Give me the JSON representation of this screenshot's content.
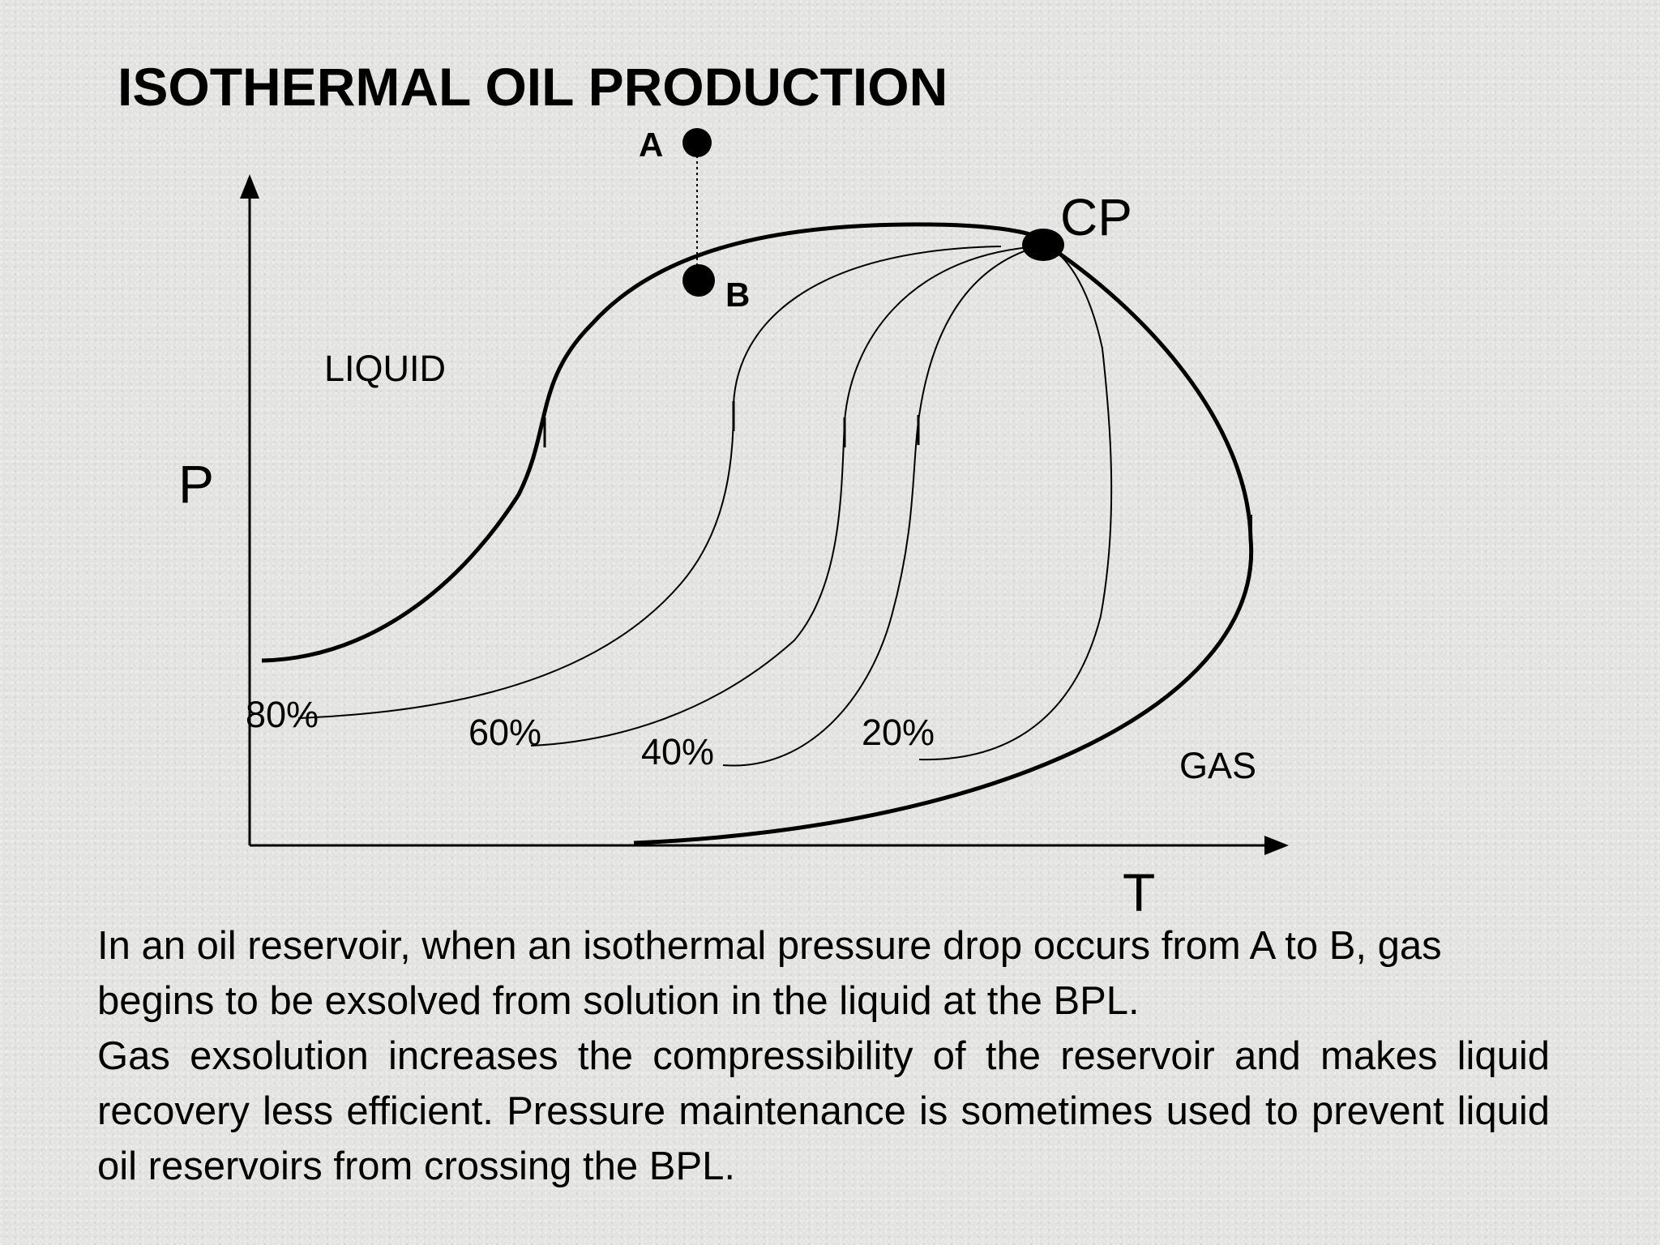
{
  "title": "ISOTHERMAL OIL PRODUCTION",
  "diagram": {
    "axis_labels": {
      "y": "P",
      "x": "T"
    },
    "region_labels": {
      "liquid": "LIQUID",
      "gas": "GAS"
    },
    "point_labels": {
      "a": "A",
      "b": "B",
      "cp": "CP"
    },
    "quality_lines": [
      "80%",
      "60%",
      "40%",
      "20%"
    ]
  },
  "caption": {
    "line1": "In an oil reservoir, when an isothermal pressure drop occurs from A to B,  gas begins to be exsolved from solution in the liquid at the BPL.",
    "line2": "Gas exsolution increases the compressibility of the reservoir and makes liquid recovery less efficient. Pressure maintenance is sometimes used to prevent liquid oil reservoirs from crossing the BPL."
  }
}
